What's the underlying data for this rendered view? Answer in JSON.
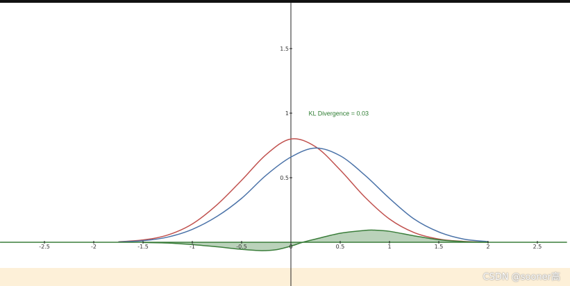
{
  "chart_data": {
    "type": "line",
    "title": "",
    "xlabel": "",
    "ylabel": "",
    "xlim": [
      -2.95,
      2.8
    ],
    "ylim": [
      -0.2,
      1.85
    ],
    "x_ticks": [
      -2.5,
      -2,
      -1.5,
      -1,
      -0.5,
      0,
      0.5,
      1,
      1.5,
      2,
      2.5
    ],
    "x_tick_labels": [
      "-2.5",
      "-2",
      "-1.5",
      "-1",
      "-0.5",
      "0",
      "0.5",
      "1",
      "1.5",
      "2",
      "2.5"
    ],
    "y_ticks": [
      0.5,
      1,
      1.5
    ],
    "y_tick_labels": [
      "0.5",
      "1",
      "1.5"
    ],
    "grid": false,
    "series": [
      {
        "color": "#c0504d",
        "x": [
          -1.75,
          -1.5,
          -1.25,
          -1,
          -0.75,
          -0.5,
          -0.25,
          0,
          0.25,
          0.5,
          0.75,
          1,
          1.25,
          1.5,
          1.75,
          2
        ],
        "y": [
          0.004,
          0.018,
          0.056,
          0.142,
          0.29,
          0.48,
          0.68,
          0.8,
          0.74,
          0.56,
          0.35,
          0.18,
          0.075,
          0.025,
          0.007,
          0.001
        ]
      },
      {
        "color": "#4a72a8",
        "x": [
          -1.75,
          -1.5,
          -1.25,
          -1,
          -0.75,
          -0.5,
          -0.25,
          0,
          0.25,
          0.5,
          0.75,
          1,
          1.25,
          1.5,
          1.75,
          2
        ],
        "y": [
          0.003,
          0.012,
          0.04,
          0.1,
          0.2,
          0.34,
          0.52,
          0.66,
          0.73,
          0.67,
          0.52,
          0.34,
          0.18,
          0.08,
          0.025,
          0.005
        ]
      },
      {
        "color": "#3a7d3a",
        "fill": true,
        "x": [
          -1.5,
          -1.25,
          -1,
          -0.75,
          -0.5,
          -0.3,
          -0.15,
          0,
          0.12,
          0.25,
          0.5,
          0.75,
          0.85,
          1,
          1.25,
          1.5,
          1.75,
          2
        ],
        "y": [
          -0.002,
          -0.006,
          -0.018,
          -0.035,
          -0.055,
          -0.065,
          -0.058,
          -0.03,
          0.0,
          0.025,
          0.07,
          0.092,
          0.094,
          0.085,
          0.05,
          0.02,
          0.005,
          0.0
        ]
      }
    ],
    "annotations": [
      {
        "text": "KL Divergence = 0.03",
        "x": 0.18,
        "y": 0.98
      }
    ]
  },
  "watermark": {
    "text": "CSDN @sooner高"
  }
}
